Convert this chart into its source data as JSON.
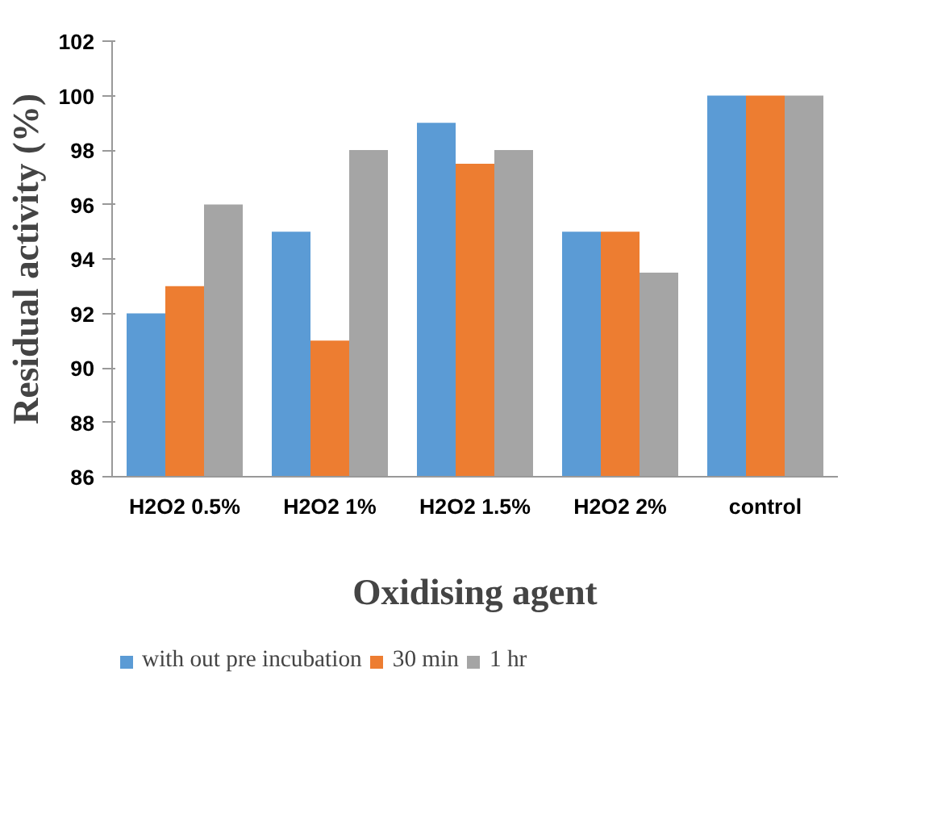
{
  "chart_data": {
    "type": "bar",
    "xlabel": "Oxidising agent",
    "ylabel": "Residual activity (%)",
    "categories": [
      "H2O2 0.5%",
      "H2O2 1%",
      "H2O2 1.5%",
      "H2O2 2%",
      "control"
    ],
    "series": [
      {
        "name": "with out pre incubation",
        "color": "#5b9bd5",
        "values": [
          92,
          95,
          99,
          95,
          100
        ]
      },
      {
        "name": "30 min",
        "color": "#ed7d31",
        "values": [
          93,
          91,
          97.5,
          95,
          100
        ]
      },
      {
        "name": "1 hr",
        "color": "#a5a5a5",
        "values": [
          96,
          98,
          98,
          93.5,
          100
        ]
      }
    ],
    "ylim": [
      86,
      102
    ],
    "yticks": [
      86,
      88,
      90,
      92,
      94,
      96,
      98,
      100,
      102
    ],
    "grid": false,
    "legend": "bottom"
  }
}
